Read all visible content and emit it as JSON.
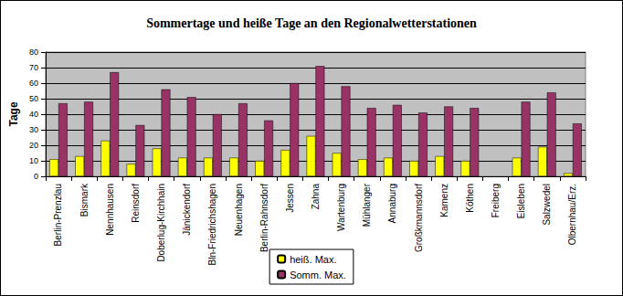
{
  "chart_data": {
    "type": "bar",
    "title": "Sommertage und heiße Tage an den Regionalwetterstationen",
    "y_label": "Tage",
    "categories": [
      "Berlin-Prenzlau",
      "Bismark",
      "Nennhausen",
      "Reinsdorf",
      "Doberlug-Kirchhain",
      "Jänickendorf",
      "Bln-Friedrichshagen",
      "Neuenhagen",
      "Berlin-Rahnsdorf",
      "Jessen",
      "Zahna",
      "Wartenburg",
      "Mühlanger",
      "Annaburg",
      "Großkmannsdorf",
      "Kamenz",
      "Köthen",
      "Freiberg",
      "Eisleben",
      "Salzwedel",
      "Olbernhau/Erz."
    ],
    "series": [
      {
        "name": "heiß. Max.",
        "color": "#ffff00",
        "values": [
          11,
          13,
          23,
          8,
          18,
          12,
          12,
          12,
          10,
          17,
          26,
          15,
          11,
          12,
          10,
          13,
          10,
          null,
          12,
          19,
          2
        ]
      },
      {
        "name": "Somm. Max.",
        "color": "#993366",
        "values": [
          47,
          48,
          67,
          33,
          56,
          51,
          40,
          47,
          36,
          60,
          71,
          58,
          44,
          46,
          41,
          45,
          44,
          null,
          48,
          54,
          34
        ]
      }
    ],
    "ylim": [
      0,
      80
    ],
    "yticks": [
      0,
      10,
      20,
      30,
      40,
      50,
      60,
      70,
      80
    ],
    "grid": true,
    "legend": "bottom"
  }
}
